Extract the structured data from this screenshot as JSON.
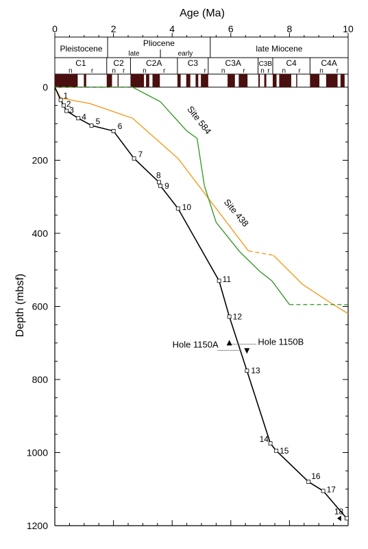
{
  "chart_data": {
    "type": "line",
    "xlabel": "Age (Ma)",
    "ylabel": "Depth (mbsf)",
    "xlim": [
      0,
      10
    ],
    "ylim": [
      0,
      1200
    ],
    "y_inverted": true,
    "x_axis_position": "top",
    "x_ticks": [
      "0",
      "2",
      "4",
      "6",
      "8",
      "10"
    ],
    "y_ticks": [
      "0",
      "200",
      "400",
      "600",
      "800",
      "1000",
      "1200"
    ],
    "epochs": [
      {
        "label": "Pleistocene",
        "start": 0,
        "end": 1.8
      },
      {
        "label": "Pliocene",
        "start": 1.8,
        "end": 5.3,
        "sub": [
          "late",
          "early"
        ],
        "sub_split": 3.6
      },
      {
        "label": "late Miocene",
        "start": 5.3,
        "end": 10
      }
    ],
    "chrons": [
      {
        "label": "C1",
        "start": 0,
        "end": 1.77,
        "nr": [
          "n",
          "r"
        ]
      },
      {
        "label": "C2",
        "start": 1.77,
        "end": 2.58,
        "nr": [
          "n",
          "r"
        ]
      },
      {
        "label": "C2A",
        "start": 2.58,
        "end": 4.18,
        "nr": [
          "n",
          "r"
        ]
      },
      {
        "label": "C3",
        "start": 4.18,
        "end": 5.23,
        "nr": [
          "r"
        ]
      },
      {
        "label": "C3A",
        "start": 5.23,
        "end": 6.93,
        "nr": [
          "n",
          "r"
        ]
      },
      {
        "label": "C3B",
        "start": 6.93,
        "end": 7.43,
        "nr": [
          "n",
          "r"
        ]
      },
      {
        "label": "C4",
        "start": 7.43,
        "end": 8.7,
        "nr": [
          "n",
          "r"
        ]
      },
      {
        "label": "C4A",
        "start": 8.7,
        "end": 10,
        "nr": [
          "n",
          "r"
        ]
      }
    ],
    "polarity_normal": [
      [
        0,
        0.78
      ],
      [
        0.99,
        1.07
      ],
      [
        1.77,
        1.95
      ],
      [
        2.14,
        2.15
      ],
      [
        2.58,
        3.04
      ],
      [
        3.11,
        3.22
      ],
      [
        3.33,
        3.58
      ],
      [
        4.18,
        4.29
      ],
      [
        4.48,
        4.62
      ],
      [
        4.8,
        4.89
      ],
      [
        4.98,
        5.23
      ],
      [
        5.89,
        6.14
      ],
      [
        6.27,
        6.57
      ],
      [
        6.94,
        6.99
      ],
      [
        7.14,
        7.21
      ],
      [
        7.43,
        7.56
      ],
      [
        7.65,
        8.06
      ],
      [
        8.23,
        8.25
      ],
      [
        8.7,
        9.02
      ],
      [
        9.25,
        9.64
      ],
      [
        9.74,
        9.88
      ]
    ],
    "series": [
      {
        "name": "Hole 1150",
        "color": "#000000",
        "points": [
          {
            "label": "1",
            "age": 0.2,
            "depth": 35
          },
          {
            "label": "2",
            "age": 0.3,
            "depth": 50
          },
          {
            "label": "3",
            "age": 0.4,
            "depth": 65
          },
          {
            "label": "4",
            "age": 0.8,
            "depth": 85
          },
          {
            "label": "5",
            "age": 1.25,
            "depth": 105
          },
          {
            "label": "6",
            "age": 2.0,
            "depth": 120
          },
          {
            "label": "7",
            "age": 2.7,
            "depth": 195
          },
          {
            "label": "8",
            "age": 3.55,
            "depth": 260
          },
          {
            "label": "9",
            "age": 3.6,
            "depth": 270
          },
          {
            "label": "10",
            "age": 4.2,
            "depth": 332
          },
          {
            "label": "11",
            "age": 5.6,
            "depth": 530
          },
          {
            "label": "12",
            "age": 5.95,
            "depth": 628
          },
          {
            "label": "13",
            "age": 6.55,
            "depth": 776
          },
          {
            "label": "14",
            "age": 7.35,
            "depth": 975
          },
          {
            "label": "15",
            "age": 7.55,
            "depth": 995
          },
          {
            "label": "16",
            "age": 8.65,
            "depth": 1080
          },
          {
            "label": "17",
            "age": 9.15,
            "depth": 1105
          },
          {
            "label": "18",
            "age": 9.95,
            "depth": 1180
          }
        ]
      },
      {
        "name": "Site 438",
        "color": "#f39a1e",
        "points": [
          [
            0,
            0
          ],
          [
            0.2,
            30
          ],
          [
            1.2,
            45
          ],
          [
            2.65,
            85
          ],
          [
            4.2,
            195
          ],
          [
            6.6,
            448
          ],
          [
            7.45,
            460
          ],
          [
            8.45,
            540
          ],
          [
            9.4,
            590
          ],
          [
            10,
            620
          ]
        ],
        "dashed_segment": [
          6.6,
          7.45
        ]
      },
      {
        "name": "Site 584",
        "color": "#3b9a2a",
        "points": [
          [
            0,
            0
          ],
          [
            2.65,
            0
          ],
          [
            3.6,
            40
          ],
          [
            4.5,
            120
          ],
          [
            4.85,
            140
          ],
          [
            5.1,
            270
          ],
          [
            5.5,
            370
          ],
          [
            6.3,
            450
          ],
          [
            7.0,
            505
          ],
          [
            7.4,
            530
          ],
          [
            8.0,
            595
          ],
          [
            10,
            595
          ]
        ],
        "dashed_segment": [
          8.0,
          10
        ],
        "dashed_top": [
          0,
          2.65
        ]
      }
    ],
    "annotations": [
      {
        "text": "Hole 1150A",
        "marker": "up-triangle",
        "age": 5.95,
        "depth": 703
      },
      {
        "text": "Hole 1150B",
        "marker": "down-triangle",
        "age": 6.55,
        "depth": 718
      }
    ]
  }
}
